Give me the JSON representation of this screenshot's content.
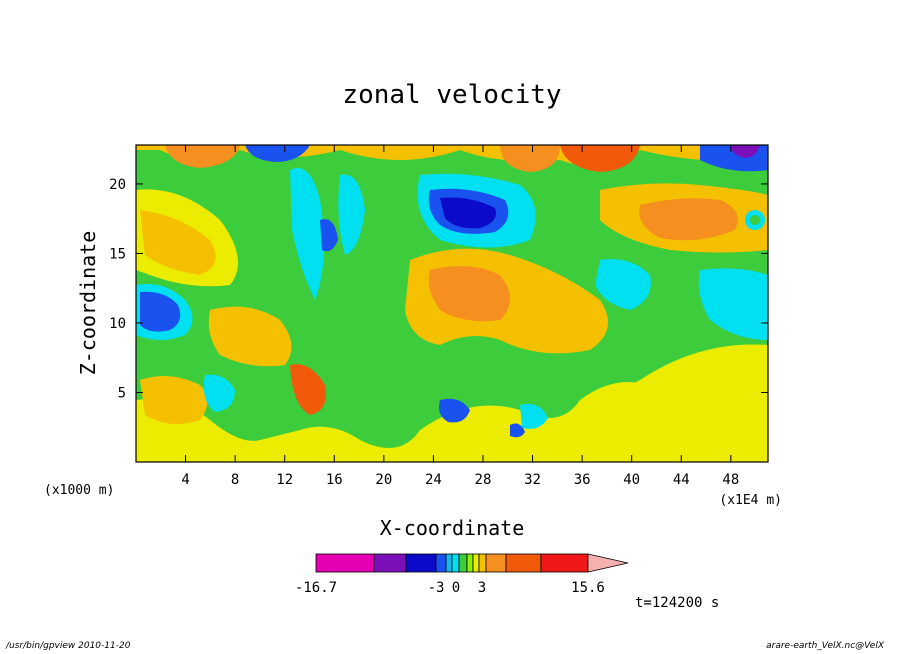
{
  "chart_data": {
    "type": "heatmap",
    "title": "zonal velocity",
    "xlabel": "X-coordinate",
    "ylabel": "Z-coordinate",
    "x_unit": "(x1E4 m)",
    "y_unit": "(x1000 m)",
    "x_ticks": [
      4,
      8,
      12,
      16,
      20,
      24,
      28,
      32,
      36,
      40,
      44,
      48
    ],
    "y_ticks": [
      5,
      10,
      15,
      20
    ],
    "xlim": [
      0,
      51
    ],
    "ylim": [
      0,
      22.8
    ],
    "colorbar": {
      "levels": [
        -16.7,
        -12,
        -7,
        -3,
        -2,
        -1,
        0,
        1,
        2,
        3,
        5,
        8,
        12,
        15.6
      ],
      "labels": [
        "-16.7",
        "-3",
        "0",
        "3",
        "15.6"
      ],
      "colors": [
        "#e600b4",
        "#7b10b8",
        "#0a0ac8",
        "#1a52f0",
        "#16b8f0",
        "#00e0f0",
        "#3ccc3c",
        "#8cf000",
        "#ecec00",
        "#f5c000",
        "#f59020",
        "#f05a0a",
        "#f01818",
        "#f57878",
        "#f5b0b0"
      ]
    },
    "time_label": "t=124200 s"
  },
  "footer": {
    "left": "/usr/bin/gpview   2010-11-20",
    "right": "arare-earth_VelX.nc@VelX"
  }
}
